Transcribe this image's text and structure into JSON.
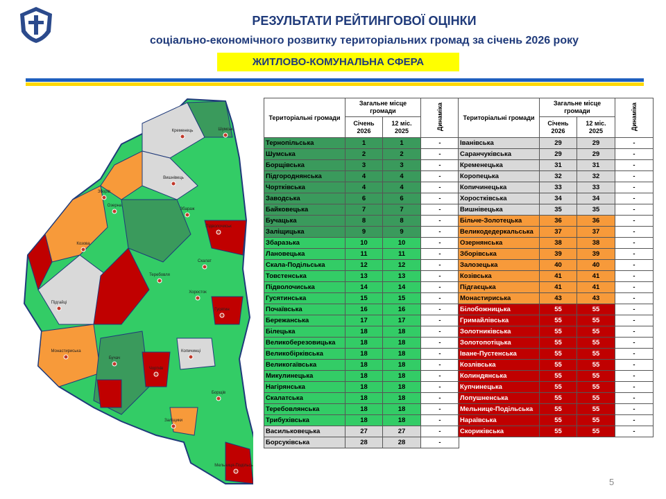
{
  "header": {
    "title": "РЕЗУЛЬТАТИ РЕЙТИНГОВОЇ ОЦІНКИ",
    "subtitle": "соціально-економічного розвитку територіальних громад за січень 2026 року",
    "section": "ЖИТЛОВО-КОМУНАЛЬНА СФЕРА"
  },
  "tables": [
    {
      "header": {
        "name": "Територіальні громади",
        "place": "Загальне місце громади",
        "jan": "Січень 2026",
        "m12": "12 міс. 2025",
        "dynamics": "Динаміка"
      },
      "rows": [
        [
          "Тернопільська",
          1,
          1,
          "-"
        ],
        [
          "Шумська",
          2,
          2,
          "-"
        ],
        [
          "Борщівська",
          3,
          3,
          "-"
        ],
        [
          "Підгороднянська",
          4,
          4,
          "-"
        ],
        [
          "Чортківська",
          4,
          4,
          "-"
        ],
        [
          "Заводська",
          6,
          6,
          "-"
        ],
        [
          "Байковецька",
          7,
          7,
          "-"
        ],
        [
          "Бучацька",
          8,
          8,
          "-"
        ],
        [
          "Заліщицька",
          9,
          9,
          "-"
        ],
        [
          "Збаразька",
          10,
          10,
          "-"
        ],
        [
          "Лановецька",
          11,
          11,
          "-"
        ],
        [
          "Скала-Подільська",
          12,
          12,
          "-"
        ],
        [
          "Товстенська",
          13,
          13,
          "-"
        ],
        [
          "Підволочиська",
          14,
          14,
          "-"
        ],
        [
          "Гусятинська",
          15,
          15,
          "-"
        ],
        [
          "Почаївська",
          16,
          16,
          "-"
        ],
        [
          "Бережанська",
          17,
          17,
          "-"
        ],
        [
          "Білецька",
          18,
          18,
          "-"
        ],
        [
          "Великоберезовицька",
          18,
          18,
          "-"
        ],
        [
          "Великобірківська",
          18,
          18,
          "-"
        ],
        [
          "Великогаївська",
          18,
          18,
          "-"
        ],
        [
          "Микулинецька",
          18,
          18,
          "-"
        ],
        [
          "Нагірянська",
          18,
          18,
          "-"
        ],
        [
          "Скалатська",
          18,
          18,
          "-"
        ],
        [
          "Теребовлянська",
          18,
          18,
          "-"
        ],
        [
          "Трибухівська",
          18,
          18,
          "-"
        ],
        [
          "Васильковецька",
          27,
          27,
          "-"
        ],
        [
          "Борсуківська",
          28,
          28,
          "-"
        ]
      ],
      "row_colors": [
        "#3a9a5c",
        "#3a9a5c",
        "#3a9a5c",
        "#3a9a5c",
        "#3a9a5c",
        "#3a9a5c",
        "#3a9a5c",
        "#3a9a5c",
        "#3a9a5c",
        "#33cc66",
        "#33cc66",
        "#33cc66",
        "#33cc66",
        "#33cc66",
        "#33cc66",
        "#33cc66",
        "#33cc66",
        "#33cc66",
        "#33cc66",
        "#33cc66",
        "#33cc66",
        "#33cc66",
        "#33cc66",
        "#33cc66",
        "#33cc66",
        "#33cc66",
        "#d9d9d9",
        "#d9d9d9"
      ]
    },
    {
      "header": {
        "name": "Територіальні громади",
        "place": "Загальне місце громади",
        "jan": "Січень 2026",
        "m12": "12 міс. 2025",
        "dynamics": "Динаміка"
      },
      "rows": [
        [
          "Іванівська",
          29,
          29,
          "-"
        ],
        [
          "Саранчуківська",
          29,
          29,
          "-"
        ],
        [
          "Кременецька",
          31,
          31,
          "-"
        ],
        [
          "Коропецька",
          32,
          32,
          "-"
        ],
        [
          "Копичинецька",
          33,
          33,
          "-"
        ],
        [
          "Хоростківська",
          34,
          34,
          "-"
        ],
        [
          "Вишнівецька",
          35,
          35,
          "-"
        ],
        [
          "Більче-Золотецька",
          36,
          36,
          "-"
        ],
        [
          "Великодедеркальська",
          37,
          37,
          "-"
        ],
        [
          "Озернянська",
          38,
          38,
          "-"
        ],
        [
          "Зборівська",
          39,
          39,
          "-"
        ],
        [
          "Залозецька",
          40,
          40,
          "-"
        ],
        [
          "Козівська",
          41,
          41,
          "-"
        ],
        [
          "Підгаєцька",
          41,
          41,
          "-"
        ],
        [
          "Монастириська",
          43,
          43,
          "-"
        ],
        [
          "Білобожницька",
          55,
          55,
          "-"
        ],
        [
          "Гримайлівська",
          55,
          55,
          "-"
        ],
        [
          "Золотниківська",
          55,
          55,
          "-"
        ],
        [
          "Золотопотіцька",
          55,
          55,
          "-"
        ],
        [
          "Іване-Пустенська",
          55,
          55,
          "-"
        ],
        [
          "Козлівська",
          55,
          55,
          "-"
        ],
        [
          "Колиндянська",
          55,
          55,
          "-"
        ],
        [
          "Купчинецька",
          55,
          55,
          "-"
        ],
        [
          "Лопушненська",
          55,
          55,
          "-"
        ],
        [
          "Мельнице-Подільська",
          55,
          55,
          "-"
        ],
        [
          "Нараївська",
          55,
          55,
          "-"
        ],
        [
          "Скориківська",
          55,
          55,
          "-"
        ]
      ],
      "row_colors": [
        "#d9d9d9",
        "#d9d9d9",
        "#d9d9d9",
        "#d9d9d9",
        "#d9d9d9",
        "#d9d9d9",
        "#d9d9d9",
        "#f79a3a",
        "#f79a3a",
        "#f79a3a",
        "#f79a3a",
        "#f79a3a",
        "#f79a3a",
        "#f79a3a",
        "#f79a3a",
        "#c00000",
        "#c00000",
        "#c00000",
        "#c00000",
        "#c00000",
        "#c00000",
        "#c00000",
        "#c00000",
        "#c00000",
        "#c00000",
        "#c00000",
        "#c00000"
      ]
    }
  ],
  "map": {
    "labels": [
      "Кременець",
      "Шумськ",
      "Вишнівець",
      "Збараж",
      "Зборів",
      "Озерна",
      "Козова",
      "Підволочиськ",
      "Скалат",
      "Теребовля",
      "Хоросток",
      "Гусятин",
      "Підгайці",
      "Монастириська",
      "Бучач",
      "Чортків",
      "Копичинці",
      "Заліщики",
      "Борщів",
      "Мельниця-Подільська"
    ]
  },
  "page_number": "5"
}
